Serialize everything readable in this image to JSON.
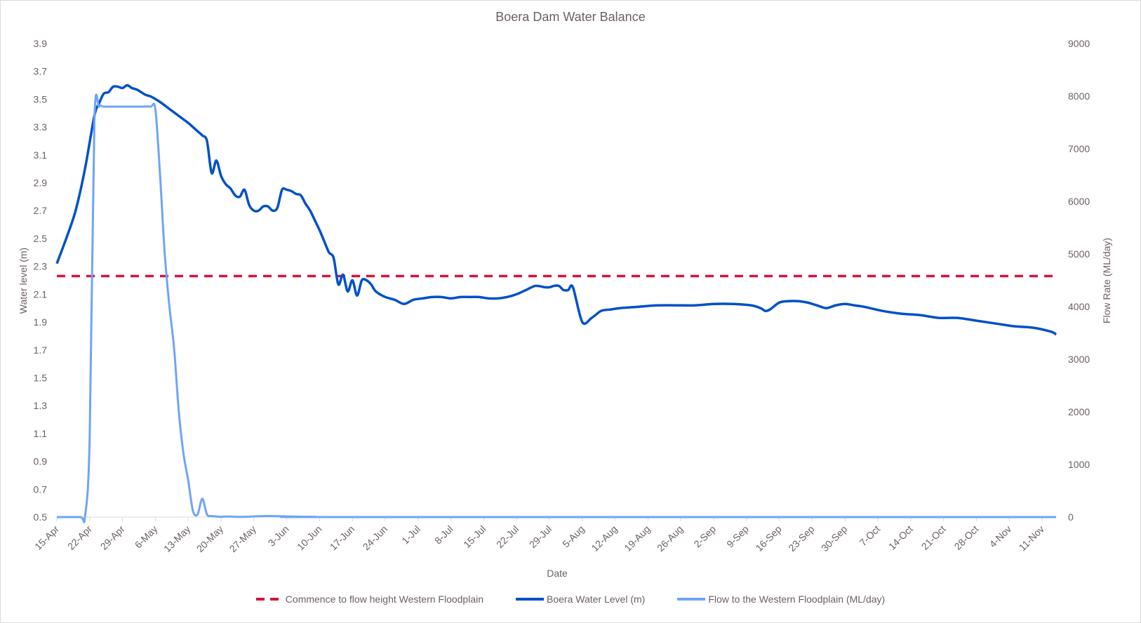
{
  "chart_data": {
    "type": "line",
    "title": "Boera Dam  Water Balance",
    "xlabel": "Date",
    "ylabel": "Water level (m)",
    "y2label": "Flow Rate (ML/day)",
    "ylim": [
      0.5,
      3.9
    ],
    "y2lim": [
      0,
      9000
    ],
    "yticks": [
      "3.9",
      "3.7",
      "3.5",
      "3.3",
      "3.1",
      "2.9",
      "2.7",
      "2.5",
      "2.3",
      "2.1",
      "1.9",
      "1.7",
      "1.5",
      "1.3",
      "1.1",
      "0.9",
      "0.7",
      "0.5"
    ],
    "y2ticks": [
      "9000",
      "8000",
      "7000",
      "6000",
      "5000",
      "4000",
      "3000",
      "2000",
      "1000",
      "0"
    ],
    "categories": [
      "15-Apr",
      "22-Apr",
      "29-Apr",
      "6-May",
      "13-May",
      "20-May",
      "27-May",
      "3-Jun",
      "10-Jun",
      "17-Jun",
      "24-Jun",
      "1-Jul",
      "8-Jul",
      "15-Jul",
      "22-Jul",
      "29-Jul",
      "5-Aug",
      "12-Aug",
      "19-Aug",
      "26-Aug",
      "2-Sep",
      "9-Sep",
      "16-Sep",
      "23-Sep",
      "30-Sep",
      "7-Oct",
      "14-Oct",
      "21-Oct",
      "28-Oct",
      "4-Nov",
      "11-Nov"
    ],
    "grid": false,
    "legend_position": "bottom",
    "series": [
      {
        "name": "Commence to flow height Western Floodplain",
        "axis": "left",
        "style": "dashed",
        "color": "#d6143c",
        "constant": 2.23
      },
      {
        "name": "Boera Water Level (m)",
        "axis": "left",
        "style": "solid",
        "color": "#0050c8",
        "day_offsets": [
          0,
          2,
          4,
          6,
          8,
          9,
          10,
          11,
          12,
          13,
          14,
          15,
          16,
          17,
          18,
          19,
          20,
          22,
          24,
          26,
          28,
          29,
          30,
          31,
          32,
          33,
          34,
          35,
          36,
          37,
          38,
          39,
          40,
          41,
          42,
          43,
          44,
          45,
          46,
          47,
          48,
          49,
          50,
          51,
          52,
          53,
          54,
          55,
          56,
          57,
          58,
          59,
          60,
          61,
          62,
          63,
          64,
          65,
          66,
          67,
          68,
          70,
          72,
          74,
          76,
          78,
          80,
          82,
          84,
          86,
          88,
          90,
          92,
          94,
          96,
          98,
          100,
          102,
          104,
          105,
          106,
          107,
          108,
          109,
          110,
          112,
          114,
          116,
          118,
          120,
          124,
          128,
          132,
          136,
          140,
          144,
          148,
          150,
          151,
          152,
          154,
          156,
          158,
          160,
          162,
          164,
          166,
          168,
          170,
          172,
          176,
          180,
          184,
          188,
          192,
          196,
          200,
          204,
          208,
          212,
          213
        ],
        "values": [
          2.32,
          2.5,
          2.7,
          3.0,
          3.38,
          3.47,
          3.54,
          3.55,
          3.59,
          3.59,
          3.58,
          3.6,
          3.58,
          3.57,
          3.55,
          3.53,
          3.52,
          3.48,
          3.43,
          3.38,
          3.33,
          3.3,
          3.27,
          3.24,
          3.2,
          2.97,
          3.06,
          2.95,
          2.89,
          2.86,
          2.81,
          2.8,
          2.85,
          2.74,
          2.7,
          2.7,
          2.73,
          2.73,
          2.7,
          2.72,
          2.85,
          2.85,
          2.84,
          2.82,
          2.81,
          2.75,
          2.7,
          2.63,
          2.56,
          2.48,
          2.4,
          2.36,
          2.17,
          2.24,
          2.12,
          2.2,
          2.09,
          2.2,
          2.2,
          2.17,
          2.12,
          2.08,
          2.06,
          2.03,
          2.06,
          2.07,
          2.08,
          2.08,
          2.07,
          2.08,
          2.08,
          2.08,
          2.07,
          2.07,
          2.08,
          2.1,
          2.13,
          2.16,
          2.15,
          2.15,
          2.16,
          2.16,
          2.13,
          2.13,
          2.15,
          1.9,
          1.93,
          1.98,
          1.99,
          2.0,
          2.01,
          2.02,
          2.02,
          2.02,
          2.03,
          2.03,
          2.02,
          2.0,
          1.98,
          1.99,
          2.04,
          2.05,
          2.05,
          2.04,
          2.02,
          2.0,
          2.02,
          2.03,
          2.02,
          2.01,
          1.98,
          1.96,
          1.95,
          1.93,
          1.93,
          1.91,
          1.89,
          1.87,
          1.86,
          1.83,
          1.81
        ]
      },
      {
        "name": "Flow to the Western Floodplain (ML/day)",
        "axis": "right",
        "style": "solid",
        "color": "#6fa4f7",
        "day_offsets": [
          0,
          5,
          6,
          7,
          8,
          9,
          10,
          12,
          14,
          16,
          18,
          20,
          21,
          22,
          23,
          24,
          25,
          26,
          27,
          28,
          29,
          30,
          31,
          32,
          33,
          34,
          35,
          36,
          37,
          38,
          40,
          45,
          50,
          55,
          60,
          213
        ],
        "values": [
          0,
          0,
          10,
          1500,
          7500,
          7800,
          7800,
          7800,
          7800,
          7800,
          7800,
          7800,
          7750,
          6500,
          5000,
          4000,
          3200,
          2000,
          1200,
          700,
          120,
          50,
          350,
          50,
          20,
          10,
          5,
          10,
          10,
          5,
          5,
          20,
          10,
          5,
          0,
          0
        ]
      }
    ]
  },
  "legend": {
    "items": [
      {
        "label": "Commence to flow height Western Floodplain"
      },
      {
        "label": "Boera Water Level (m)"
      },
      {
        "label": "Flow to the Western Floodplain (ML/day)"
      }
    ]
  }
}
